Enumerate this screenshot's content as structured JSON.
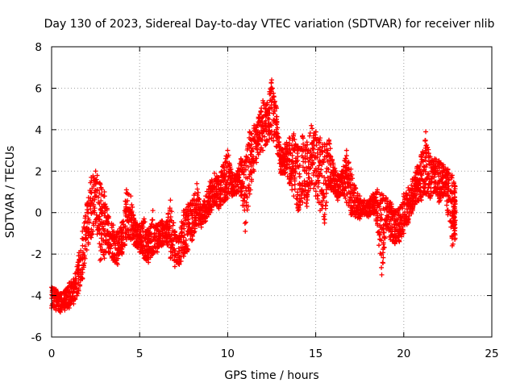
{
  "chart_data": {
    "type": "scatter",
    "title": "Day 130 of 2023, Sidereal Day-to-day VTEC variation (SDTVAR) for receiver nlib",
    "xlabel": "GPS time / hours",
    "ylabel": "SDTVAR / TECUs",
    "xlim": [
      0,
      25
    ],
    "ylim": [
      -6,
      8
    ],
    "xticks": [
      0,
      5,
      10,
      15,
      20,
      25
    ],
    "yticks": [
      -6,
      -4,
      -2,
      0,
      2,
      4,
      6,
      8
    ],
    "grid": true,
    "marker": "+",
    "series_color": "#ff0000",
    "series": [
      {
        "name": "SDTVAR",
        "bands": [
          {
            "x": 0.0,
            "lo": -4.6,
            "hi": -3.6
          },
          {
            "x": 0.25,
            "lo": -4.7,
            "hi": -3.7
          },
          {
            "x": 0.5,
            "lo": -4.8,
            "hi": -3.9
          },
          {
            "x": 0.75,
            "lo": -4.7,
            "hi": -3.8
          },
          {
            "x": 1.0,
            "lo": -4.6,
            "hi": -3.4
          },
          {
            "x": 1.25,
            "lo": -4.4,
            "hi": -3.2
          },
          {
            "x": 1.5,
            "lo": -3.9,
            "hi": -2.4
          },
          {
            "x": 1.75,
            "lo": -3.2,
            "hi": -0.9
          },
          {
            "x": 2.0,
            "lo": -1.8,
            "hi": 0.4
          },
          {
            "x": 2.25,
            "lo": -1.2,
            "hi": 1.7
          },
          {
            "x": 2.5,
            "lo": -0.5,
            "hi": 2.0
          },
          {
            "x": 2.75,
            "lo": -2.3,
            "hi": 1.4
          },
          {
            "x": 3.0,
            "lo": -2.2,
            "hi": 1.0
          },
          {
            "x": 3.25,
            "lo": -1.9,
            "hi": -0.2
          },
          {
            "x": 3.5,
            "lo": -2.3,
            "hi": -0.6
          },
          {
            "x": 3.75,
            "lo": -2.5,
            "hi": -0.9
          },
          {
            "x": 4.0,
            "lo": -2.0,
            "hi": -0.5
          },
          {
            "x": 4.25,
            "lo": -1.3,
            "hi": 1.1
          },
          {
            "x": 4.5,
            "lo": -1.3,
            "hi": 0.8
          },
          {
            "x": 4.75,
            "lo": -1.6,
            "hi": -0.4
          },
          {
            "x": 5.0,
            "lo": -1.9,
            "hi": -0.6
          },
          {
            "x": 5.25,
            "lo": -2.2,
            "hi": -0.3
          },
          {
            "x": 5.5,
            "lo": -2.4,
            "hi": -0.9
          },
          {
            "x": 5.75,
            "lo": -2.0,
            "hi": 0.1
          },
          {
            "x": 6.0,
            "lo": -1.9,
            "hi": -0.6
          },
          {
            "x": 6.25,
            "lo": -1.6,
            "hi": -0.4
          },
          {
            "x": 6.5,
            "lo": -1.4,
            "hi": -0.5
          },
          {
            "x": 6.75,
            "lo": -2.2,
            "hi": 0.6
          },
          {
            "x": 7.0,
            "lo": -2.6,
            "hi": -0.9
          },
          {
            "x": 7.25,
            "lo": -2.5,
            "hi": -1.1
          },
          {
            "x": 7.5,
            "lo": -2.1,
            "hi": 0.1
          },
          {
            "x": 7.75,
            "lo": -1.8,
            "hi": 0.4
          },
          {
            "x": 8.0,
            "lo": -1.3,
            "hi": 0.6
          },
          {
            "x": 8.25,
            "lo": -0.6,
            "hi": 1.4
          },
          {
            "x": 8.5,
            "lo": -0.7,
            "hi": 0.2
          },
          {
            "x": 8.75,
            "lo": -0.4,
            "hi": 0.8
          },
          {
            "x": 9.0,
            "lo": 0.0,
            "hi": 1.5
          },
          {
            "x": 9.25,
            "lo": 0.4,
            "hi": 1.9
          },
          {
            "x": 9.5,
            "lo": 0.2,
            "hi": 1.7
          },
          {
            "x": 9.75,
            "lo": 0.5,
            "hi": 2.3
          },
          {
            "x": 10.0,
            "lo": 0.7,
            "hi": 3.0
          },
          {
            "x": 10.25,
            "lo": 0.8,
            "hi": 1.9
          },
          {
            "x": 10.5,
            "lo": 0.9,
            "hi": 1.8
          },
          {
            "x": 10.75,
            "lo": 1.0,
            "hi": 2.6
          },
          {
            "x": 11.0,
            "lo": -0.9,
            "hi": 2.5
          },
          {
            "x": 11.25,
            "lo": 0.9,
            "hi": 3.9
          },
          {
            "x": 11.5,
            "lo": 2.0,
            "hi": 4.2
          },
          {
            "x": 11.75,
            "lo": 2.8,
            "hi": 4.6
          },
          {
            "x": 12.0,
            "lo": 3.0,
            "hi": 5.4
          },
          {
            "x": 12.25,
            "lo": 3.4,
            "hi": 5.3
          },
          {
            "x": 12.5,
            "lo": 3.6,
            "hi": 6.4
          },
          {
            "x": 12.75,
            "lo": 3.2,
            "hi": 5.1
          },
          {
            "x": 13.0,
            "lo": 1.9,
            "hi": 3.0
          },
          {
            "x": 13.25,
            "lo": 1.9,
            "hi": 3.3
          },
          {
            "x": 13.5,
            "lo": 1.4,
            "hi": 3.6
          },
          {
            "x": 13.75,
            "lo": 0.8,
            "hi": 3.8
          },
          {
            "x": 14.0,
            "lo": 0.1,
            "hi": 3.2
          },
          {
            "x": 14.25,
            "lo": 0.5,
            "hi": 3.7
          },
          {
            "x": 14.5,
            "lo": 0.3,
            "hi": 3.4
          },
          {
            "x": 14.75,
            "lo": 1.4,
            "hi": 4.2
          },
          {
            "x": 15.0,
            "lo": 0.8,
            "hi": 3.9
          },
          {
            "x": 15.25,
            "lo": 0.1,
            "hi": 3.6
          },
          {
            "x": 15.5,
            "lo": -0.5,
            "hi": 3.3
          },
          {
            "x": 15.75,
            "lo": 1.2,
            "hi": 3.5
          },
          {
            "x": 16.0,
            "lo": 1.0,
            "hi": 2.3
          },
          {
            "x": 16.25,
            "lo": 0.6,
            "hi": 1.8
          },
          {
            "x": 16.5,
            "lo": 0.9,
            "hi": 2.0
          },
          {
            "x": 16.75,
            "lo": 0.5,
            "hi": 3.0
          },
          {
            "x": 17.0,
            "lo": -0.1,
            "hi": 2.1
          },
          {
            "x": 17.25,
            "lo": -0.2,
            "hi": 1.2
          },
          {
            "x": 17.5,
            "lo": -0.3,
            "hi": 0.8
          },
          {
            "x": 17.75,
            "lo": -0.1,
            "hi": 0.6
          },
          {
            "x": 18.0,
            "lo": -0.2,
            "hi": 0.5
          },
          {
            "x": 18.25,
            "lo": 0.0,
            "hi": 0.9
          },
          {
            "x": 18.5,
            "lo": -0.6,
            "hi": 1.1
          },
          {
            "x": 18.75,
            "lo": -3.0,
            "hi": 0.9
          },
          {
            "x": 19.0,
            "lo": -0.8,
            "hi": 0.7
          },
          {
            "x": 19.25,
            "lo": -1.3,
            "hi": 0.5
          },
          {
            "x": 19.5,
            "lo": -1.5,
            "hi": 0.1
          },
          {
            "x": 19.75,
            "lo": -1.4,
            "hi": 0.2
          },
          {
            "x": 20.0,
            "lo": -1.0,
            "hi": 0.9
          },
          {
            "x": 20.25,
            "lo": -0.5,
            "hi": 1.2
          },
          {
            "x": 20.5,
            "lo": 0.1,
            "hi": 1.6
          },
          {
            "x": 20.75,
            "lo": 0.5,
            "hi": 2.2
          },
          {
            "x": 21.0,
            "lo": 0.6,
            "hi": 2.8
          },
          {
            "x": 21.25,
            "lo": 0.9,
            "hi": 3.9
          },
          {
            "x": 21.5,
            "lo": 0.7,
            "hi": 2.7
          },
          {
            "x": 21.75,
            "lo": 1.0,
            "hi": 2.6
          },
          {
            "x": 22.0,
            "lo": 0.5,
            "hi": 2.5
          },
          {
            "x": 22.25,
            "lo": 0.8,
            "hi": 2.3
          },
          {
            "x": 22.5,
            "lo": 0.0,
            "hi": 2.1
          },
          {
            "x": 22.75,
            "lo": -1.6,
            "hi": 1.8
          },
          {
            "x": 22.9,
            "lo": -1.3,
            "hi": 1.3
          }
        ]
      }
    ]
  }
}
